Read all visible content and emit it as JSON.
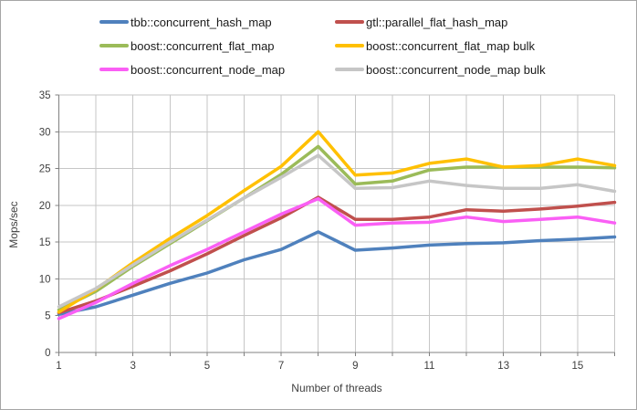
{
  "window": {
    "background": "#ffffff",
    "border_color": "#a6a6a6"
  },
  "styles": {
    "grid_color": "#c6c6c6",
    "axis_color": "#808080",
    "tick_text_color": "#404040",
    "legend_text_color": "#1a1a1a"
  },
  "chart_data": {
    "type": "line",
    "title": "",
    "xlabel": "Number of threads",
    "ylabel": "Mops/sec",
    "x": [
      1,
      2,
      3,
      4,
      5,
      6,
      7,
      8,
      9,
      10,
      11,
      12,
      13,
      14,
      15,
      16
    ],
    "x_labeled_ticks": [
      1,
      3,
      5,
      7,
      9,
      11,
      13,
      15
    ],
    "xlim": [
      1,
      16
    ],
    "ylim": [
      0,
      35
    ],
    "y_ticks": [
      0,
      5,
      10,
      15,
      20,
      25,
      30,
      35
    ],
    "grid": true,
    "legend_position": "top",
    "series": [
      {
        "name": "tbb::concurrent_hash_map",
        "color": "#4F81BD",
        "values": [
          5.2,
          6.2,
          7.8,
          9.4,
          10.8,
          12.6,
          14.0,
          16.4,
          13.9,
          14.2,
          14.6,
          14.8,
          14.9,
          15.2,
          15.4,
          15.7
        ]
      },
      {
        "name": "gtl::parallel_flat_hash_map",
        "color": "#C0504D",
        "values": [
          5.4,
          7.0,
          9.0,
          11.1,
          13.4,
          15.9,
          18.3,
          21.1,
          18.1,
          18.1,
          18.4,
          19.4,
          19.2,
          19.5,
          19.9,
          20.4
        ]
      },
      {
        "name": "boost::concurrent_flat_map",
        "color": "#9BBB59",
        "values": [
          5.8,
          8.3,
          11.7,
          14.8,
          17.9,
          21.0,
          24.2,
          28.0,
          22.9,
          23.3,
          24.8,
          25.2,
          25.2,
          25.2,
          25.2,
          25.1
        ]
      },
      {
        "name": "boost::concurrent_flat_map bulk",
        "color": "#FFC000",
        "values": [
          5.5,
          8.6,
          12.2,
          15.5,
          18.6,
          22.0,
          25.3,
          30.0,
          24.1,
          24.4,
          25.7,
          26.3,
          25.2,
          25.4,
          26.3,
          25.4
        ]
      },
      {
        "name": "boost::concurrent_node_map",
        "color": "#FA5FF5",
        "values": [
          4.6,
          6.8,
          9.4,
          11.8,
          14.0,
          16.4,
          18.8,
          20.9,
          17.3,
          17.6,
          17.7,
          18.4,
          17.8,
          18.1,
          18.4,
          17.6
        ]
      },
      {
        "name": "boost::concurrent_node_map bulk",
        "color": "#C6C6C6",
        "values": [
          6.2,
          8.7,
          11.9,
          15.0,
          18.0,
          21.0,
          23.8,
          26.8,
          22.3,
          22.4,
          23.3,
          22.7,
          22.3,
          22.3,
          22.8,
          21.9
        ]
      }
    ]
  }
}
